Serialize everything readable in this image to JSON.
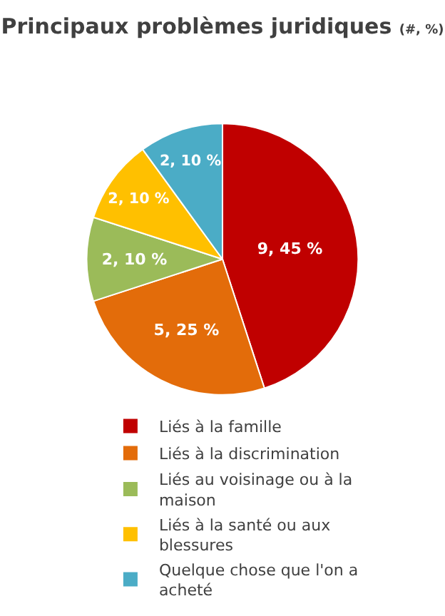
{
  "chart_data": {
    "type": "pie",
    "title": "Principaux problèmes juridiques",
    "subtitle": "(#, %)",
    "categories": [
      "Liés à la famille",
      "Liés à la discrimination",
      "Liés au voisinage ou à la maison",
      "Liés à la santé ou aux blessures",
      "Quelque chose que l'on a acheté"
    ],
    "values": [
      9,
      5,
      2,
      2,
      2
    ],
    "colors": [
      "#c00000",
      "#e36c0a",
      "#9bbb59",
      "#ffc000",
      "#4bacc6"
    ],
    "value_labels": [
      "9, 45 %",
      "5, 25 %",
      "2, 10 %",
      "2, 10 %",
      "2, 10 %"
    ],
    "legend": "bottom"
  }
}
